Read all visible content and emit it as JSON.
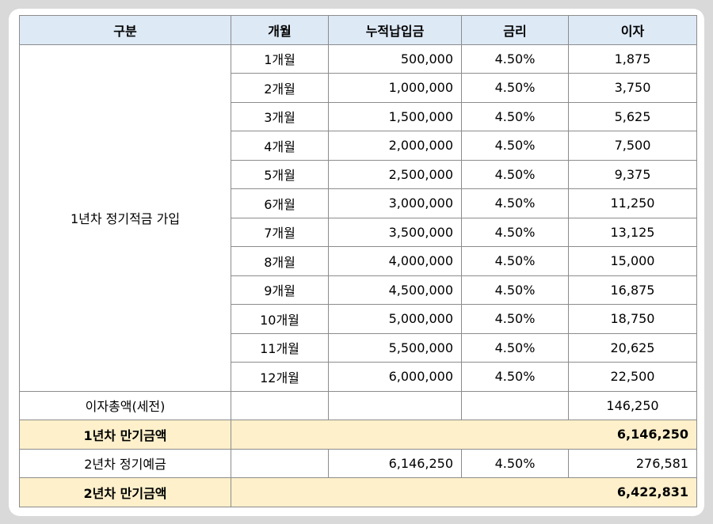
{
  "headers": [
    "구분",
    "개월",
    "누적납입금",
    "금리",
    "이자"
  ],
  "group_label": "1년차 정기적금 가입",
  "rows": [
    {
      "month": "1개월",
      "amount": "500,000",
      "rate": "4.50%",
      "interest": "1,875"
    },
    {
      "month": "2개월",
      "amount": "1,000,000",
      "rate": "4.50%",
      "interest": "3,750"
    },
    {
      "month": "3개월",
      "amount": "1,500,000",
      "rate": "4.50%",
      "interest": "5,625"
    },
    {
      "month": "4개월",
      "amount": "2,000,000",
      "rate": "4.50%",
      "interest": "7,500"
    },
    {
      "month": "5개월",
      "amount": "2,500,000",
      "rate": "4.50%",
      "interest": "9,375"
    },
    {
      "month": "6개월",
      "amount": "3,000,000",
      "rate": "4.50%",
      "interest": "11,250"
    },
    {
      "month": "7개월",
      "amount": "3,500,000",
      "rate": "4.50%",
      "interest": "13,125"
    },
    {
      "month": "8개월",
      "amount": "4,000,000",
      "rate": "4.50%",
      "interest": "15,000"
    },
    {
      "month": "9개월",
      "amount": "4,500,000",
      "rate": "4.50%",
      "interest": "16,875"
    },
    {
      "month": "10개월",
      "amount": "5,000,000",
      "rate": "4.50%",
      "interest": "18,750"
    },
    {
      "month": "11개월",
      "amount": "5,500,000",
      "rate": "4.50%",
      "interest": "20,625"
    },
    {
      "month": "12개월",
      "amount": "6,000,000",
      "rate": "4.50%",
      "interest": "22,500"
    }
  ],
  "interest_total": {
    "label": "이자총액(세전)",
    "value": "146,250"
  },
  "year1_maturity": {
    "label": "1년차 만기금액",
    "value": "6,146,250"
  },
  "year2_deposit": {
    "label": "2년차 정기예금",
    "amount": "6,146,250",
    "rate": "4.50%",
    "interest": "276,581"
  },
  "year2_maturity": {
    "label": "2년차 만기금액",
    "value": "6,422,831"
  },
  "colors": {
    "header_bg": "#dde9f5",
    "summary_bg": "#fdf0cb",
    "border": "#8c8c8c"
  }
}
